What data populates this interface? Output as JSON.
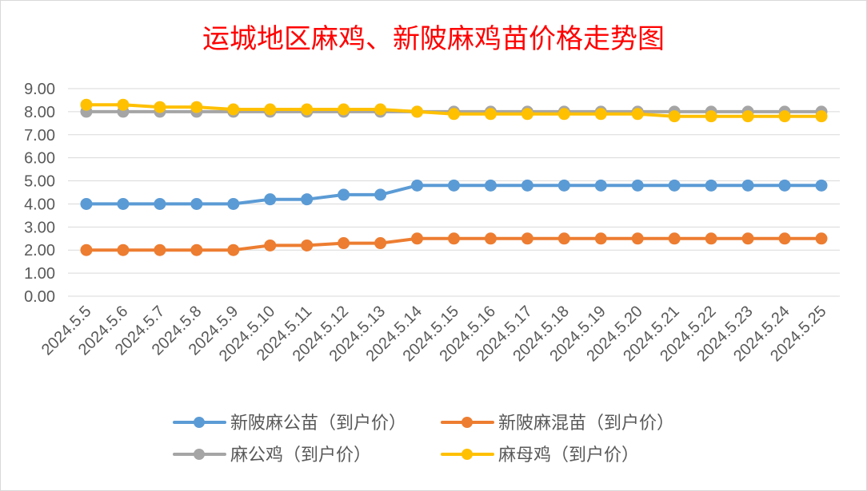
{
  "chart_data": {
    "type": "line",
    "title": "运城地区麻鸡、新陂麻鸡苗价格走势图",
    "xlabel": "",
    "ylabel": "",
    "ylim": [
      0,
      9
    ],
    "y_ticks": [
      "0.00",
      "1.00",
      "2.00",
      "3.00",
      "4.00",
      "5.00",
      "6.00",
      "7.00",
      "8.00",
      "9.00"
    ],
    "grid": true,
    "legend_position": "bottom",
    "categories": [
      "2024.5.5",
      "2024.5.6",
      "2024.5.7",
      "2024.5.8",
      "2024.5.9",
      "2024.5.10",
      "2024.5.11",
      "2024.5.12",
      "2024.5.13",
      "2024.5.14",
      "2024.5.15",
      "2024.5.16",
      "2024.5.17",
      "2024.5.18",
      "2024.5.19",
      "2024.5.20",
      "2024.5.21",
      "2024.5.22",
      "2024.5.23",
      "2024.5.24",
      "2024.5.25"
    ],
    "series": [
      {
        "name": "新陂麻公苗（到户价）",
        "color": "#5b9bd5",
        "values": [
          4.0,
          4.0,
          4.0,
          4.0,
          4.0,
          4.2,
          4.2,
          4.4,
          4.4,
          4.8,
          4.8,
          4.8,
          4.8,
          4.8,
          4.8,
          4.8,
          4.8,
          4.8,
          4.8,
          4.8,
          4.8
        ]
      },
      {
        "name": "新陂麻混苗（到户价）",
        "color": "#ed7d31",
        "values": [
          2.0,
          2.0,
          2.0,
          2.0,
          2.0,
          2.2,
          2.2,
          2.3,
          2.3,
          2.5,
          2.5,
          2.5,
          2.5,
          2.5,
          2.5,
          2.5,
          2.5,
          2.5,
          2.5,
          2.5,
          2.5
        ]
      },
      {
        "name": "麻公鸡（到户价）",
        "color": "#a5a5a5",
        "values": [
          8.0,
          8.0,
          8.0,
          8.0,
          8.0,
          8.0,
          8.0,
          8.0,
          8.0,
          8.0,
          8.0,
          8.0,
          8.0,
          8.0,
          8.0,
          8.0,
          8.0,
          8.0,
          8.0,
          8.0,
          8.0
        ]
      },
      {
        "name": "麻母鸡（到户价）",
        "color": "#ffc000",
        "values": [
          8.3,
          8.3,
          8.2,
          8.2,
          8.1,
          8.1,
          8.1,
          8.1,
          8.1,
          8.0,
          7.9,
          7.9,
          7.9,
          7.9,
          7.9,
          7.9,
          7.8,
          7.8,
          7.8,
          7.8,
          7.8
        ]
      }
    ],
    "colors": {
      "title": "#ff0000",
      "axis_text": "#595959",
      "grid": "#d9d9d9",
      "frame": "#d9d9d9"
    }
  }
}
